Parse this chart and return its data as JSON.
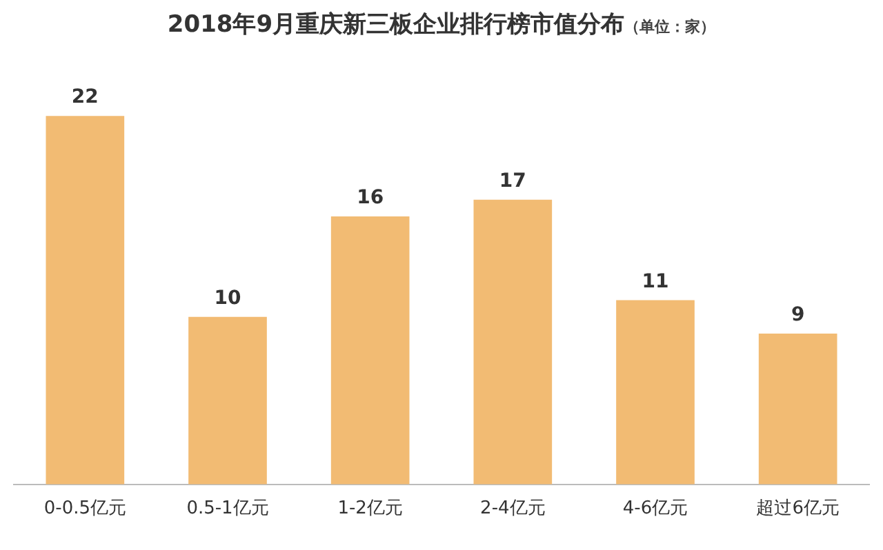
{
  "chart_data": {
    "type": "bar",
    "title": "2018年9月重庆新三板企业排行榜市值分布",
    "subtitle": "（单位：家）",
    "categories": [
      "0-0.5亿元",
      "0.5-1亿元",
      "1-2亿元",
      "2-4亿元",
      "4-6亿元",
      "超过6亿元"
    ],
    "values": [
      22,
      10,
      16,
      17,
      11,
      9
    ],
    "color": "#f2bb73",
    "data_labels": true,
    "grid": false,
    "legend": false
  }
}
